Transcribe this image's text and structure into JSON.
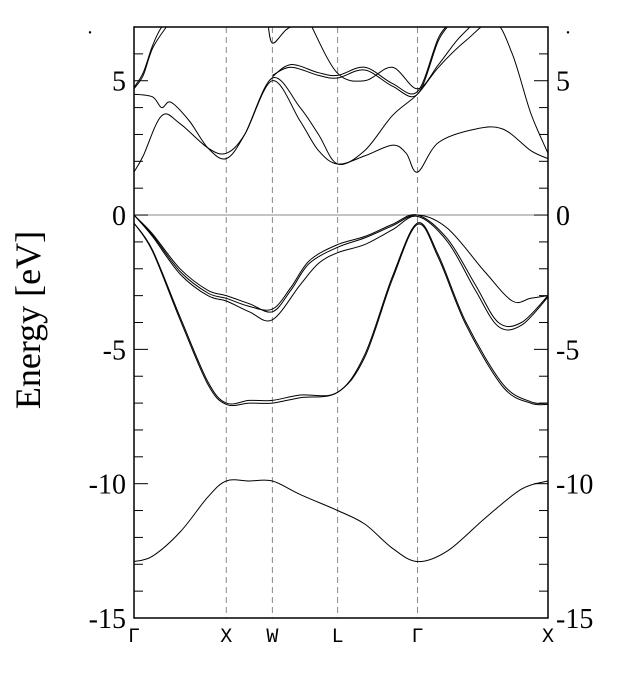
{
  "chart_data": {
    "type": "line",
    "ylabel": "Energy [eV]",
    "xlabel": "",
    "title": "",
    "ylim": [
      -15,
      7
    ],
    "yticks": [
      -15,
      -10,
      -5,
      0,
      5
    ],
    "ytick_labels": [
      "-15",
      "-10",
      "-5",
      "0",
      "5"
    ],
    "yminor_step": 1,
    "fermi_level": 0,
    "k_path": {
      "labels": [
        "Γ",
        "X",
        "W",
        "L",
        "Γ",
        "X"
      ],
      "positions": [
        0.0,
        1.0,
        1.5,
        2.2071,
        3.0731,
        4.4873
      ]
    },
    "series": [
      {
        "x": [
          0,
          0.2,
          0.5,
          0.8,
          1.0,
          1.25,
          1.5,
          1.8,
          2.2071,
          2.5,
          2.8,
          3.0731,
          3.4,
          3.8,
          4.2,
          4.4873
        ],
        "y": [
          -12.9,
          -12.7,
          -11.8,
          -10.5,
          -9.9,
          -9.9,
          -9.9,
          -10.4,
          -11.0,
          -11.5,
          -12.4,
          -12.9,
          -12.5,
          -11.3,
          -10.2,
          -9.9
        ]
      },
      {
        "x": [
          0,
          0.2,
          0.5,
          0.8,
          1.0,
          1.25,
          1.5,
          1.8,
          2.2071,
          2.5,
          2.8,
          3.0731,
          3.3,
          3.6,
          4.0,
          4.3,
          4.4873
        ],
        "y": [
          -0.3,
          -1.3,
          -3.8,
          -6.2,
          -7.0,
          -6.9,
          -6.9,
          -6.7,
          -6.6,
          -5.2,
          -2.3,
          -0.3,
          -1.5,
          -4.0,
          -6.3,
          -6.95,
          -7.0
        ]
      },
      {
        "x": [
          0,
          0.2,
          0.5,
          0.8,
          1.0,
          1.25,
          1.5,
          1.8,
          2.2071,
          2.5,
          2.8,
          3.0731,
          3.3,
          3.6,
          4.0,
          4.3,
          4.4873
        ],
        "y": [
          -0.3,
          -1.35,
          -3.9,
          -6.3,
          -7.05,
          -7.0,
          -7.0,
          -6.8,
          -6.6,
          -5.3,
          -2.4,
          -0.35,
          -1.6,
          -4.1,
          -6.4,
          -7.0,
          -7.05
        ]
      },
      {
        "x": [
          0,
          0.2,
          0.5,
          0.8,
          1.0,
          1.25,
          1.5,
          1.7,
          1.9,
          2.2071,
          2.5,
          2.8,
          3.0731,
          3.4,
          3.8,
          4.1,
          4.3,
          4.4873
        ],
        "y": [
          0,
          -0.7,
          -2.0,
          -2.8,
          -3.0,
          -3.3,
          -3.6,
          -2.8,
          -1.8,
          -1.2,
          -0.85,
          -0.4,
          0,
          -0.5,
          -2.1,
          -3.2,
          -3.1,
          -3.0
        ]
      },
      {
        "x": [
          0,
          0.2,
          0.5,
          0.8,
          1.0,
          1.25,
          1.5,
          1.7,
          1.9,
          2.2071,
          2.5,
          2.8,
          3.0731,
          3.4,
          3.7,
          3.95,
          4.2,
          4.4873
        ],
        "y": [
          0,
          -0.75,
          -2.1,
          -2.9,
          -3.1,
          -3.4,
          -3.5,
          -2.7,
          -1.7,
          -1.1,
          -0.8,
          -0.35,
          0,
          -0.9,
          -2.6,
          -4.0,
          -4.0,
          -3.0
        ]
      },
      {
        "x": [
          0,
          0.2,
          0.5,
          0.8,
          1.0,
          1.25,
          1.5,
          1.8,
          2.0,
          2.2071,
          2.5,
          2.8,
          3.0731,
          3.4,
          3.7,
          3.95,
          4.2,
          4.4873
        ],
        "y": [
          0,
          -0.8,
          -2.2,
          -3.0,
          -3.2,
          -3.6,
          -3.9,
          -2.6,
          -1.8,
          -1.4,
          -1.1,
          -0.55,
          -0.05,
          -1.0,
          -2.8,
          -4.15,
          -4.1,
          -3.05
        ]
      },
      {
        "x": [
          0,
          0.1,
          0.3,
          0.5,
          0.8,
          1.0,
          1.2,
          1.5,
          1.8,
          2.0,
          2.2071,
          2.5,
          2.8,
          2.95,
          3.0731,
          3.3,
          3.7,
          4.0,
          4.3,
          4.4873
        ],
        "y": [
          1.6,
          2.2,
          3.7,
          3.4,
          2.5,
          2.3,
          3.0,
          5.0,
          3.5,
          2.4,
          1.9,
          2.2,
          2.6,
          2.3,
          1.6,
          2.7,
          3.2,
          3.2,
          2.4,
          2.1
        ]
      },
      {
        "x": [
          0,
          0.2,
          0.3,
          0.4,
          0.6,
          0.8,
          1.0,
          1.2,
          1.5,
          1.8,
          2.0,
          2.2071,
          2.5,
          2.8,
          3.0731,
          3.3,
          3.6,
          3.9,
          4.1,
          4.3,
          4.4873
        ],
        "y": [
          4.5,
          4.4,
          4.0,
          4.2,
          3.5,
          2.5,
          2.1,
          3.0,
          5.1,
          4.0,
          3.0,
          1.9,
          2.4,
          3.7,
          4.5,
          5.5,
          6.5,
          7.2,
          6.0,
          3.8,
          2.3
        ]
      },
      {
        "x": [
          0,
          0.1,
          0.2,
          0.35,
          0.4
        ],
        "y": [
          4.7,
          5.2,
          6.2,
          7.0,
          7.2
        ]
      },
      {
        "x": [
          0,
          0.1,
          0.2,
          0.3,
          0.38
        ],
        "y": [
          4.75,
          5.3,
          6.3,
          7.0,
          7.2
        ]
      },
      {
        "x": [
          1.45,
          1.5,
          1.65,
          1.8
        ],
        "y": [
          7.2,
          6.4,
          6.9,
          7.2
        ]
      },
      {
        "x": [
          1.5,
          1.7,
          2.0,
          2.2071,
          2.5,
          2.8,
          3.0731,
          3.3,
          3.45
        ],
        "y": [
          5.2,
          5.5,
          5.2,
          5.1,
          5.4,
          4.8,
          4.5,
          6.5,
          7.2
        ]
      },
      {
        "x": [
          1.5,
          1.7,
          2.0,
          2.2071,
          2.5,
          2.8,
          3.0731,
          3.3,
          3.45
        ],
        "y": [
          5.15,
          5.6,
          5.3,
          5.2,
          5.5,
          4.9,
          4.6,
          6.6,
          7.2
        ]
      },
      {
        "x": [
          1.9,
          2.2,
          2.5,
          2.8,
          3.0731,
          3.3,
          3.5,
          3.7
        ],
        "y": [
          7.2,
          5.3,
          5.0,
          5.5,
          4.7,
          5.6,
          6.5,
          7.2
        ]
      }
    ]
  }
}
